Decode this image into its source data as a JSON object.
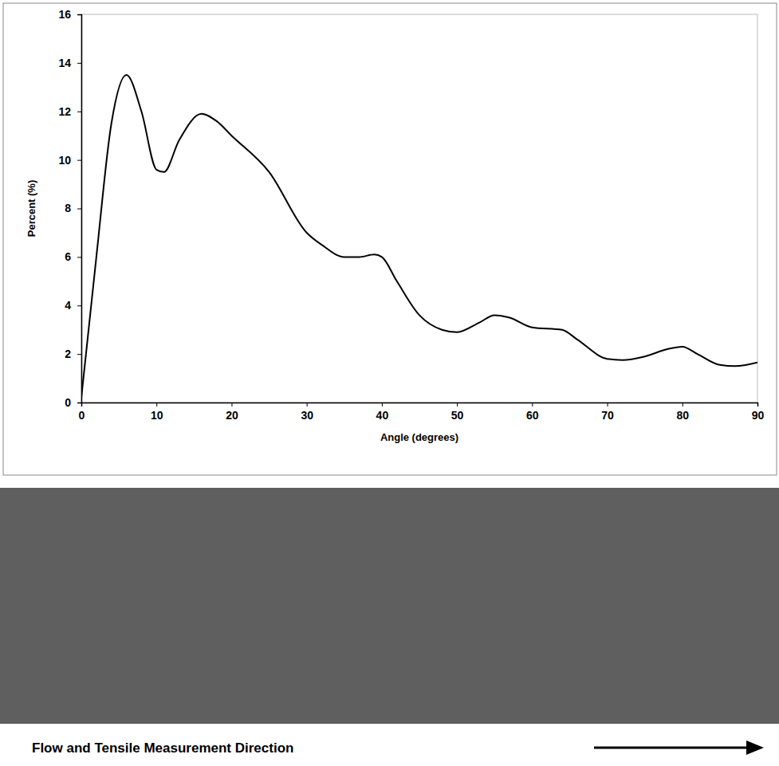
{
  "chart_data": {
    "type": "line",
    "x_label": "Angle (degrees)",
    "y_label": "Percent (%)",
    "x": [
      0,
      2,
      4,
      6,
      8,
      10,
      11,
      13,
      16,
      18,
      20,
      25,
      30,
      32,
      35,
      37,
      39,
      40,
      42,
      45,
      48,
      50,
      53,
      55,
      57,
      60,
      64,
      66,
      70,
      72,
      75,
      78,
      80,
      82,
      85,
      87,
      90
    ],
    "values": [
      0.2,
      6,
      11.5,
      13.5,
      12,
      9.6,
      9.5,
      10.8,
      11.9,
      11.6,
      11,
      9.5,
      7,
      6.5,
      6,
      6,
      6.1,
      6,
      5,
      3.6,
      3,
      2.9,
      3.3,
      3.6,
      3.5,
      3.1,
      3,
      2.6,
      1.8,
      1.75,
      1.9,
      2.2,
      2.3,
      2,
      1.55,
      1.5,
      1.65
    ],
    "color": "#000000",
    "xlim": [
      0,
      90
    ],
    "ylim": [
      0,
      16
    ],
    "xticks": [
      0,
      10,
      20,
      30,
      40,
      50,
      60,
      70,
      80,
      90
    ],
    "yticks": [
      0,
      2,
      4,
      6,
      8,
      10,
      12,
      14,
      16
    ],
    "grid": false,
    "annotations": [
      "Flow and Tensile Measurement Direction"
    ]
  }
}
